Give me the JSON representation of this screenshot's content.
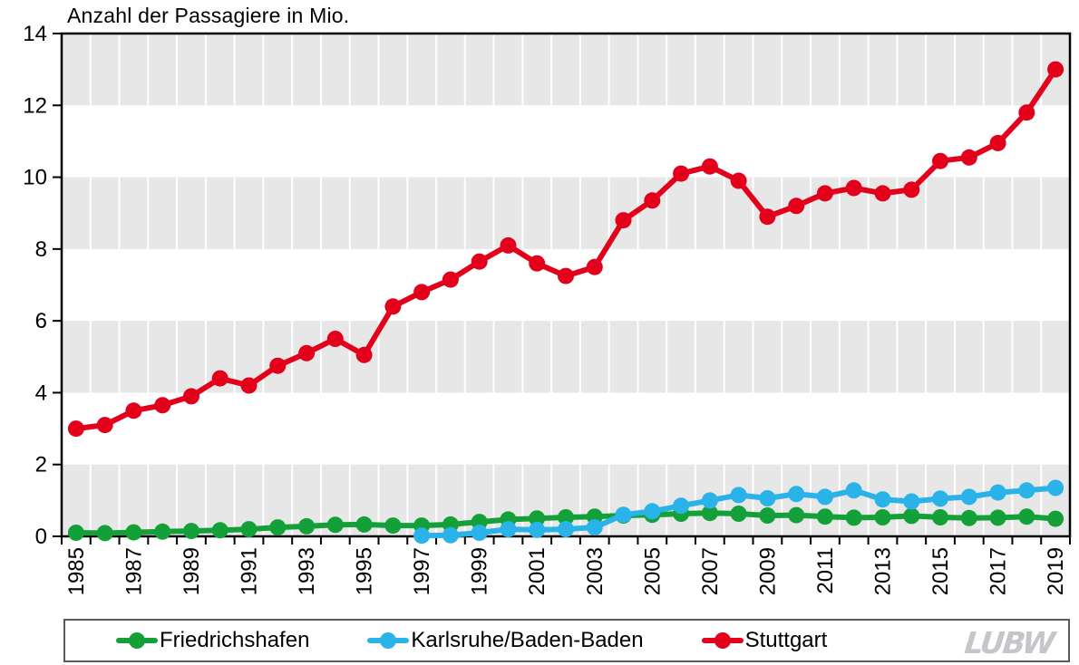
{
  "title": "Anzahl der Passagiere in Mio.",
  "watermark": "LUBW",
  "colors": {
    "band_gray": "#e7e7e7",
    "gridline": "#ffffff",
    "plot_border": "#000000",
    "legend_border": "#595959",
    "friedrichshafen_green": "#14a038",
    "karlsruhe_blue": "#2ab3e8",
    "stuttgart_red": "#e2001a"
  },
  "chart_data": {
    "type": "line",
    "title": "Anzahl der Passagiere in Mio.",
    "xlabel": "",
    "ylabel": "Anzahl der Passagiere in Mio.",
    "ylim": [
      0,
      14
    ],
    "y_ticks": [
      0,
      2,
      4,
      6,
      8,
      10,
      12,
      14
    ],
    "grid": "vertical white gridlines on alternating gray bands",
    "legend_position": "bottom",
    "x": [
      1985,
      1986,
      1987,
      1988,
      1989,
      1990,
      1991,
      1992,
      1993,
      1994,
      1995,
      1996,
      1997,
      1998,
      1999,
      2000,
      2001,
      2002,
      2003,
      2004,
      2005,
      2006,
      2007,
      2008,
      2009,
      2010,
      2011,
      2012,
      2013,
      2014,
      2015,
      2016,
      2017,
      2018,
      2019
    ],
    "x_tick_labels": [
      "1985",
      "1987",
      "1989",
      "1991",
      "1993",
      "1995",
      "1997",
      "1999",
      "2001",
      "2003",
      "2005",
      "2007",
      "2009",
      "2011",
      "2013",
      "2015",
      "2017",
      "2019"
    ],
    "series": [
      {
        "name": "Friedrichshafen",
        "color": "#14a038",
        "values": [
          0.1,
          0.09,
          0.11,
          0.13,
          0.15,
          0.17,
          0.2,
          0.25,
          0.28,
          0.32,
          0.33,
          0.3,
          0.3,
          0.33,
          0.4,
          0.47,
          0.5,
          0.53,
          0.55,
          0.58,
          0.6,
          0.63,
          0.65,
          0.63,
          0.58,
          0.59,
          0.55,
          0.52,
          0.53,
          0.57,
          0.53,
          0.51,
          0.52,
          0.55,
          0.49
        ]
      },
      {
        "name": "Karlsruhe/Baden-Baden",
        "color": "#2ab3e8",
        "values": [
          null,
          null,
          null,
          null,
          null,
          null,
          null,
          null,
          null,
          null,
          null,
          null,
          0.02,
          0.03,
          0.1,
          0.2,
          0.18,
          0.2,
          0.25,
          0.6,
          0.7,
          0.85,
          1.0,
          1.15,
          1.06,
          1.18,
          1.1,
          1.28,
          1.03,
          0.97,
          1.05,
          1.1,
          1.22,
          1.28,
          1.35
        ]
      },
      {
        "name": "Stuttgart",
        "color": "#e2001a",
        "values": [
          3.0,
          3.1,
          3.5,
          3.65,
          3.9,
          4.4,
          4.2,
          4.75,
          5.1,
          5.5,
          5.05,
          6.4,
          6.8,
          7.15,
          7.65,
          8.1,
          7.6,
          7.25,
          7.5,
          8.8,
          9.35,
          10.1,
          10.3,
          9.9,
          8.9,
          9.2,
          9.55,
          9.7,
          9.55,
          9.65,
          10.45,
          10.55,
          10.95,
          11.8,
          13.0
        ]
      }
    ]
  }
}
